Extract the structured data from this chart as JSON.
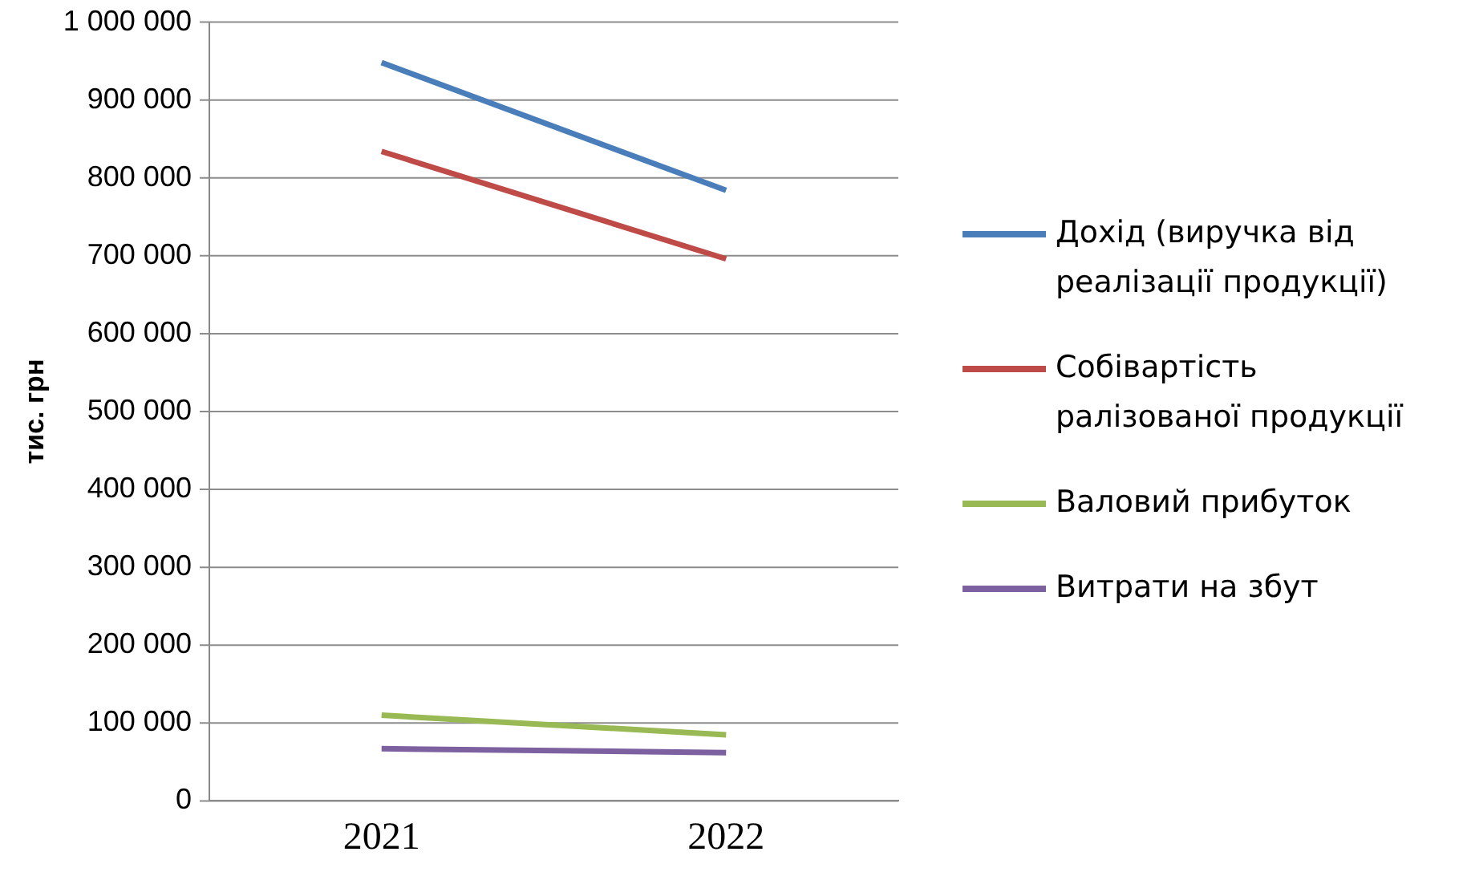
{
  "chart_data": {
    "type": "line",
    "ylabel": "тис. грн",
    "categories": [
      "2021",
      "2022"
    ],
    "series": [
      {
        "name": "Дохід (виручка від реалізації продукції)",
        "color": "#4a7ebb",
        "values": [
          948000,
          784000
        ]
      },
      {
        "name": "Собівартість ралізованої продукції",
        "color": "#be4b48",
        "values": [
          834000,
          696000
        ]
      },
      {
        "name": "Валовий прибуток",
        "color": "#98b954",
        "values": [
          110000,
          85000
        ]
      },
      {
        "name": "Витрати на збут",
        "color": "#7d60a0",
        "values": [
          67000,
          62000
        ]
      }
    ],
    "ylim": [
      0,
      1000000
    ],
    "yticks": [
      {
        "value": 0,
        "label": "0"
      },
      {
        "value": 100000,
        "label": "100 000"
      },
      {
        "value": 200000,
        "label": "200 000"
      },
      {
        "value": 300000,
        "label": "300 000"
      },
      {
        "value": 400000,
        "label": "400 000"
      },
      {
        "value": 500000,
        "label": "500 000"
      },
      {
        "value": 600000,
        "label": "600 000"
      },
      {
        "value": 700000,
        "label": "700 000"
      },
      {
        "value": 800000,
        "label": "800 000"
      },
      {
        "value": 900000,
        "label": "900 000"
      },
      {
        "value": 1000000,
        "label": "1 000 000"
      }
    ],
    "grid": "y",
    "legend": "right",
    "marker": "none",
    "line_style": "solid"
  }
}
